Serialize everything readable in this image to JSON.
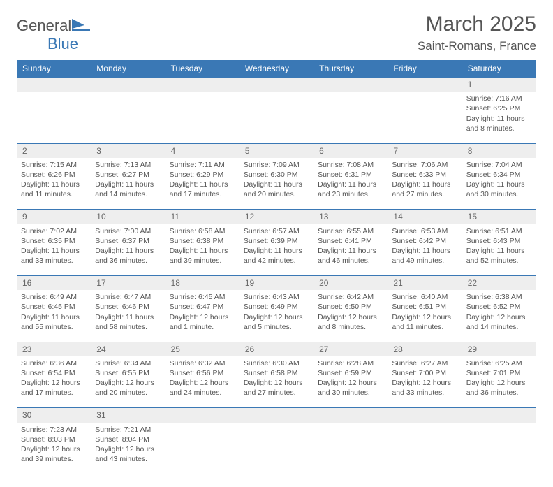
{
  "logo": {
    "text1": "General",
    "text2": "Blue"
  },
  "title": "March 2025",
  "location": "Saint-Romans, France",
  "colors": {
    "header_bg": "#3a78b5",
    "header_text": "#ffffff",
    "daynum_bg": "#eeeeee",
    "border": "#3a78b5",
    "text": "#555555",
    "logo_blue": "#3a78b5",
    "logo_gray": "#555555"
  },
  "weekdays": [
    "Sunday",
    "Monday",
    "Tuesday",
    "Wednesday",
    "Thursday",
    "Friday",
    "Saturday"
  ],
  "weeks": [
    {
      "nums": [
        "",
        "",
        "",
        "",
        "",
        "",
        "1"
      ],
      "cells": [
        null,
        null,
        null,
        null,
        null,
        null,
        {
          "sunrise": "Sunrise: 7:16 AM",
          "sunset": "Sunset: 6:25 PM",
          "day1": "Daylight: 11 hours",
          "day2": "and 8 minutes."
        }
      ]
    },
    {
      "nums": [
        "2",
        "3",
        "4",
        "5",
        "6",
        "7",
        "8"
      ],
      "cells": [
        {
          "sunrise": "Sunrise: 7:15 AM",
          "sunset": "Sunset: 6:26 PM",
          "day1": "Daylight: 11 hours",
          "day2": "and 11 minutes."
        },
        {
          "sunrise": "Sunrise: 7:13 AM",
          "sunset": "Sunset: 6:27 PM",
          "day1": "Daylight: 11 hours",
          "day2": "and 14 minutes."
        },
        {
          "sunrise": "Sunrise: 7:11 AM",
          "sunset": "Sunset: 6:29 PM",
          "day1": "Daylight: 11 hours",
          "day2": "and 17 minutes."
        },
        {
          "sunrise": "Sunrise: 7:09 AM",
          "sunset": "Sunset: 6:30 PM",
          "day1": "Daylight: 11 hours",
          "day2": "and 20 minutes."
        },
        {
          "sunrise": "Sunrise: 7:08 AM",
          "sunset": "Sunset: 6:31 PM",
          "day1": "Daylight: 11 hours",
          "day2": "and 23 minutes."
        },
        {
          "sunrise": "Sunrise: 7:06 AM",
          "sunset": "Sunset: 6:33 PM",
          "day1": "Daylight: 11 hours",
          "day2": "and 27 minutes."
        },
        {
          "sunrise": "Sunrise: 7:04 AM",
          "sunset": "Sunset: 6:34 PM",
          "day1": "Daylight: 11 hours",
          "day2": "and 30 minutes."
        }
      ]
    },
    {
      "nums": [
        "9",
        "10",
        "11",
        "12",
        "13",
        "14",
        "15"
      ],
      "cells": [
        {
          "sunrise": "Sunrise: 7:02 AM",
          "sunset": "Sunset: 6:35 PM",
          "day1": "Daylight: 11 hours",
          "day2": "and 33 minutes."
        },
        {
          "sunrise": "Sunrise: 7:00 AM",
          "sunset": "Sunset: 6:37 PM",
          "day1": "Daylight: 11 hours",
          "day2": "and 36 minutes."
        },
        {
          "sunrise": "Sunrise: 6:58 AM",
          "sunset": "Sunset: 6:38 PM",
          "day1": "Daylight: 11 hours",
          "day2": "and 39 minutes."
        },
        {
          "sunrise": "Sunrise: 6:57 AM",
          "sunset": "Sunset: 6:39 PM",
          "day1": "Daylight: 11 hours",
          "day2": "and 42 minutes."
        },
        {
          "sunrise": "Sunrise: 6:55 AM",
          "sunset": "Sunset: 6:41 PM",
          "day1": "Daylight: 11 hours",
          "day2": "and 46 minutes."
        },
        {
          "sunrise": "Sunrise: 6:53 AM",
          "sunset": "Sunset: 6:42 PM",
          "day1": "Daylight: 11 hours",
          "day2": "and 49 minutes."
        },
        {
          "sunrise": "Sunrise: 6:51 AM",
          "sunset": "Sunset: 6:43 PM",
          "day1": "Daylight: 11 hours",
          "day2": "and 52 minutes."
        }
      ]
    },
    {
      "nums": [
        "16",
        "17",
        "18",
        "19",
        "20",
        "21",
        "22"
      ],
      "cells": [
        {
          "sunrise": "Sunrise: 6:49 AM",
          "sunset": "Sunset: 6:45 PM",
          "day1": "Daylight: 11 hours",
          "day2": "and 55 minutes."
        },
        {
          "sunrise": "Sunrise: 6:47 AM",
          "sunset": "Sunset: 6:46 PM",
          "day1": "Daylight: 11 hours",
          "day2": "and 58 minutes."
        },
        {
          "sunrise": "Sunrise: 6:45 AM",
          "sunset": "Sunset: 6:47 PM",
          "day1": "Daylight: 12 hours",
          "day2": "and 1 minute."
        },
        {
          "sunrise": "Sunrise: 6:43 AM",
          "sunset": "Sunset: 6:49 PM",
          "day1": "Daylight: 12 hours",
          "day2": "and 5 minutes."
        },
        {
          "sunrise": "Sunrise: 6:42 AM",
          "sunset": "Sunset: 6:50 PM",
          "day1": "Daylight: 12 hours",
          "day2": "and 8 minutes."
        },
        {
          "sunrise": "Sunrise: 6:40 AM",
          "sunset": "Sunset: 6:51 PM",
          "day1": "Daylight: 12 hours",
          "day2": "and 11 minutes."
        },
        {
          "sunrise": "Sunrise: 6:38 AM",
          "sunset": "Sunset: 6:52 PM",
          "day1": "Daylight: 12 hours",
          "day2": "and 14 minutes."
        }
      ]
    },
    {
      "nums": [
        "23",
        "24",
        "25",
        "26",
        "27",
        "28",
        "29"
      ],
      "cells": [
        {
          "sunrise": "Sunrise: 6:36 AM",
          "sunset": "Sunset: 6:54 PM",
          "day1": "Daylight: 12 hours",
          "day2": "and 17 minutes."
        },
        {
          "sunrise": "Sunrise: 6:34 AM",
          "sunset": "Sunset: 6:55 PM",
          "day1": "Daylight: 12 hours",
          "day2": "and 20 minutes."
        },
        {
          "sunrise": "Sunrise: 6:32 AM",
          "sunset": "Sunset: 6:56 PM",
          "day1": "Daylight: 12 hours",
          "day2": "and 24 minutes."
        },
        {
          "sunrise": "Sunrise: 6:30 AM",
          "sunset": "Sunset: 6:58 PM",
          "day1": "Daylight: 12 hours",
          "day2": "and 27 minutes."
        },
        {
          "sunrise": "Sunrise: 6:28 AM",
          "sunset": "Sunset: 6:59 PM",
          "day1": "Daylight: 12 hours",
          "day2": "and 30 minutes."
        },
        {
          "sunrise": "Sunrise: 6:27 AM",
          "sunset": "Sunset: 7:00 PM",
          "day1": "Daylight: 12 hours",
          "day2": "and 33 minutes."
        },
        {
          "sunrise": "Sunrise: 6:25 AM",
          "sunset": "Sunset: 7:01 PM",
          "day1": "Daylight: 12 hours",
          "day2": "and 36 minutes."
        }
      ]
    },
    {
      "nums": [
        "30",
        "31",
        "",
        "",
        "",
        "",
        ""
      ],
      "cells": [
        {
          "sunrise": "Sunrise: 7:23 AM",
          "sunset": "Sunset: 8:03 PM",
          "day1": "Daylight: 12 hours",
          "day2": "and 39 minutes."
        },
        {
          "sunrise": "Sunrise: 7:21 AM",
          "sunset": "Sunset: 8:04 PM",
          "day1": "Daylight: 12 hours",
          "day2": "and 43 minutes."
        },
        null,
        null,
        null,
        null,
        null
      ]
    }
  ]
}
